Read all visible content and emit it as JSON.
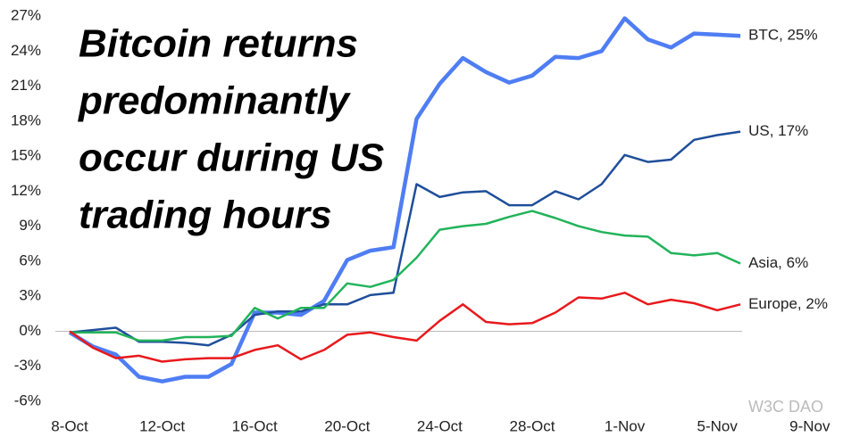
{
  "chart_data": {
    "type": "line",
    "title": [
      "Bitcoin returns",
      "predominantly",
      "occur during US",
      "trading hours"
    ],
    "watermark": "W3C DAO",
    "categories": [
      "8-Oct",
      null,
      null,
      null,
      "12-Oct",
      null,
      null,
      null,
      "16-Oct",
      null,
      null,
      null,
      "20-Oct",
      null,
      null,
      null,
      "24-Oct",
      null,
      null,
      null,
      "28-Oct",
      null,
      null,
      null,
      "1-Nov",
      null,
      null,
      null,
      "5-Nov",
      null,
      null,
      null,
      "9-Nov"
    ],
    "series": [
      {
        "name": "BTC, 25%",
        "color": "#4f7df3",
        "values": [
          -0.1,
          -1.3,
          -2.0,
          -3.9,
          -4.3,
          -3.9,
          -3.9,
          -2.8,
          1.6,
          1.6,
          1.4,
          2.6,
          6.1,
          6.9,
          7.2,
          18.2,
          21.2,
          23.4,
          22.2,
          21.3,
          21.9,
          23.5,
          23.4,
          24.0,
          26.8,
          25.0,
          24.3,
          25.5,
          25.4,
          25.3,
          null,
          null,
          null
        ]
      },
      {
        "name": "US, 17%",
        "color": "#1f4e9a",
        "values": [
          -0.1,
          0.1,
          0.3,
          -0.9,
          -0.9,
          -1.0,
          -1.2,
          -0.3,
          1.4,
          1.7,
          1.7,
          2.3,
          2.3,
          3.1,
          3.3,
          12.6,
          11.5,
          11.9,
          12.0,
          10.8,
          10.8,
          12.0,
          11.3,
          12.6,
          15.1,
          14.5,
          14.7,
          16.4,
          16.8,
          17.1,
          null,
          null,
          null
        ]
      },
      {
        "name": "Asia, 6%",
        "color": "#22b35a",
        "values": [
          -0.1,
          -0.1,
          -0.1,
          -0.8,
          -0.8,
          -0.5,
          -0.5,
          -0.4,
          2.0,
          1.1,
          2.0,
          2.0,
          4.1,
          3.8,
          4.4,
          6.3,
          8.7,
          9.0,
          9.2,
          9.8,
          10.3,
          9.7,
          9.0,
          8.5,
          8.2,
          8.1,
          6.7,
          6.5,
          6.7,
          5.8,
          null,
          null,
          null
        ]
      },
      {
        "name": "Europe, 2%",
        "color": "#e8191c",
        "values": [
          0,
          -1.4,
          -2.3,
          -2.1,
          -2.6,
          -2.4,
          -2.3,
          -2.3,
          -1.6,
          -1.2,
          -2.4,
          -1.6,
          -0.3,
          -0.1,
          -0.5,
          -0.8,
          0.9,
          2.3,
          0.8,
          0.6,
          0.7,
          1.6,
          2.9,
          2.8,
          3.3,
          2.3,
          2.7,
          2.4,
          1.8,
          2.3,
          null,
          null,
          null
        ]
      }
    ],
    "ylim": [
      -6,
      27
    ],
    "yticks": [
      {
        "value": -6,
        "label": "-6%"
      },
      {
        "value": -3,
        "label": "-3%"
      },
      {
        "value": 0,
        "label": "0%"
      },
      {
        "value": 3,
        "label": "3%"
      },
      {
        "value": 6,
        "label": "6%"
      },
      {
        "value": 9,
        "label": "9%"
      },
      {
        "value": 12,
        "label": "12%"
      },
      {
        "value": 15,
        "label": "15%"
      },
      {
        "value": 18,
        "label": "18%"
      },
      {
        "value": 21,
        "label": "21%"
      },
      {
        "value": 24,
        "label": "24%"
      },
      {
        "value": 27,
        "label": "27%"
      }
    ],
    "grid": false
  }
}
